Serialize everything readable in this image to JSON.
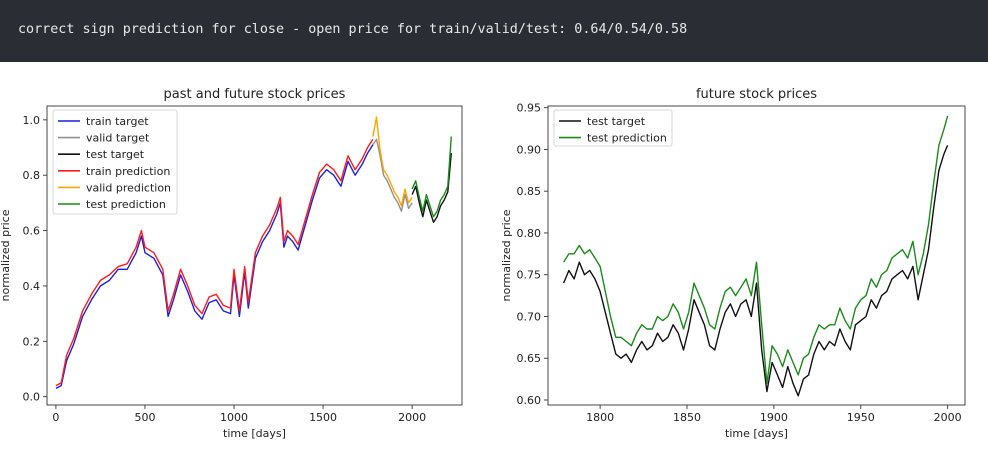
{
  "console": {
    "text": "correct sign prediction for close - open price for train/valid/test: 0.64/0.54/0.58"
  },
  "chart_data": [
    {
      "type": "line",
      "title": "past and future stock prices",
      "xlabel": "time [days]",
      "ylabel": "normalized price",
      "xlim": [
        -50,
        2280
      ],
      "ylim": [
        -0.03,
        1.05
      ],
      "xticks": [
        0,
        500,
        1000,
        1500,
        2000
      ],
      "yticks": [
        0.0,
        0.2,
        0.4,
        0.6,
        0.8,
        1.0
      ],
      "ytick_labels": [
        "0.0",
        "0.2",
        "0.4",
        "0.6",
        "0.8",
        "1.0"
      ],
      "legend_position": "upper-left",
      "grid": false,
      "series": [
        {
          "name": "train target",
          "color": "#1f1fdd",
          "x": [
            0,
            30,
            60,
            100,
            150,
            200,
            250,
            300,
            350,
            400,
            450,
            480,
            500,
            550,
            600,
            630,
            660,
            700,
            740,
            780,
            820,
            860,
            900,
            940,
            980,
            1000,
            1030,
            1060,
            1080,
            1120,
            1160,
            1200,
            1240,
            1260,
            1280,
            1300,
            1330,
            1360,
            1400,
            1440,
            1480,
            1520,
            1560,
            1600,
            1640,
            1680,
            1720,
            1750,
            1780
          ],
          "values": [
            0.03,
            0.04,
            0.13,
            0.19,
            0.29,
            0.35,
            0.4,
            0.42,
            0.46,
            0.46,
            0.52,
            0.58,
            0.52,
            0.5,
            0.44,
            0.29,
            0.35,
            0.44,
            0.38,
            0.31,
            0.28,
            0.34,
            0.35,
            0.31,
            0.3,
            0.44,
            0.29,
            0.45,
            0.32,
            0.5,
            0.56,
            0.6,
            0.66,
            0.7,
            0.54,
            0.58,
            0.56,
            0.53,
            0.62,
            0.71,
            0.79,
            0.82,
            0.8,
            0.76,
            0.85,
            0.8,
            0.84,
            0.88,
            0.91
          ]
        },
        {
          "name": "valid target",
          "color": "#909090",
          "x": [
            1780,
            1800,
            1820,
            1840,
            1860,
            1880,
            1900,
            1920,
            1940,
            1960,
            1980,
            2000
          ],
          "values": [
            0.91,
            0.93,
            0.87,
            0.8,
            0.78,
            0.75,
            0.72,
            0.7,
            0.67,
            0.73,
            0.68,
            0.7
          ]
        },
        {
          "name": "test target",
          "color": "#111111",
          "x": [
            2000,
            2020,
            2040,
            2060,
            2080,
            2100,
            2120,
            2140,
            2160,
            2180,
            2200,
            2220
          ],
          "values": [
            0.73,
            0.76,
            0.7,
            0.65,
            0.71,
            0.67,
            0.63,
            0.65,
            0.69,
            0.71,
            0.74,
            0.88
          ]
        },
        {
          "name": "train prediction",
          "color": "#ff1a1a",
          "x": [
            0,
            30,
            60,
            100,
            150,
            200,
            250,
            300,
            350,
            400,
            450,
            480,
            500,
            550,
            600,
            630,
            660,
            700,
            740,
            780,
            820,
            860,
            900,
            940,
            980,
            1000,
            1030,
            1060,
            1080,
            1120,
            1160,
            1200,
            1240,
            1260,
            1280,
            1300,
            1330,
            1360,
            1400,
            1440,
            1480,
            1520,
            1560,
            1600,
            1640,
            1680,
            1720,
            1750,
            1780
          ],
          "values": [
            0.04,
            0.05,
            0.15,
            0.21,
            0.31,
            0.37,
            0.42,
            0.44,
            0.47,
            0.48,
            0.54,
            0.6,
            0.54,
            0.52,
            0.46,
            0.31,
            0.37,
            0.46,
            0.4,
            0.33,
            0.3,
            0.36,
            0.37,
            0.33,
            0.32,
            0.46,
            0.31,
            0.47,
            0.34,
            0.52,
            0.58,
            0.62,
            0.68,
            0.72,
            0.56,
            0.6,
            0.58,
            0.55,
            0.64,
            0.73,
            0.81,
            0.84,
            0.82,
            0.78,
            0.87,
            0.82,
            0.86,
            0.9,
            0.93
          ]
        },
        {
          "name": "valid prediction",
          "color": "#ffa500",
          "x": [
            1780,
            1800,
            1810,
            1820,
            1840,
            1860,
            1880,
            1900,
            1920,
            1940,
            1960,
            1980,
            2000
          ],
          "values": [
            0.94,
            1.01,
            0.95,
            0.89,
            0.82,
            0.8,
            0.77,
            0.74,
            0.72,
            0.69,
            0.75,
            0.7,
            0.72
          ]
        },
        {
          "name": "test prediction",
          "color": "#1a8a1a",
          "x": [
            2000,
            2020,
            2040,
            2060,
            2080,
            2100,
            2120,
            2140,
            2160,
            2180,
            2200,
            2220
          ],
          "values": [
            0.75,
            0.78,
            0.72,
            0.67,
            0.73,
            0.69,
            0.65,
            0.67,
            0.71,
            0.73,
            0.76,
            0.94
          ]
        }
      ]
    },
    {
      "type": "line",
      "title": "future stock prices",
      "xlabel": "time [days]",
      "ylabel": "normalized price",
      "xlim": [
        1770,
        2010
      ],
      "ylim": [
        0.594,
        0.952
      ],
      "xticks": [
        1800,
        1850,
        1900,
        1950,
        2000
      ],
      "yticks": [
        0.6,
        0.65,
        0.7,
        0.75,
        0.8,
        0.85,
        0.9,
        0.95
      ],
      "ytick_labels": [
        "0.60",
        "0.65",
        "0.70",
        "0.75",
        "0.80",
        "0.85",
        "0.90",
        "0.95"
      ],
      "legend_position": "upper-left",
      "grid": false,
      "series": [
        {
          "name": "test target",
          "color": "#111111",
          "x": [
            1779,
            1782,
            1785,
            1788,
            1791,
            1794,
            1797,
            1800,
            1803,
            1806,
            1809,
            1812,
            1815,
            1818,
            1821,
            1824,
            1827,
            1830,
            1833,
            1836,
            1839,
            1842,
            1845,
            1848,
            1851,
            1854,
            1857,
            1860,
            1863,
            1866,
            1869,
            1872,
            1875,
            1878,
            1881,
            1884,
            1887,
            1890,
            1893,
            1896,
            1899,
            1902,
            1905,
            1908,
            1911,
            1914,
            1917,
            1920,
            1923,
            1926,
            1929,
            1932,
            1935,
            1938,
            1941,
            1944,
            1947,
            1950,
            1953,
            1956,
            1959,
            1962,
            1965,
            1968,
            1971,
            1974,
            1977,
            1980,
            1983,
            1986,
            1989,
            1992,
            1995,
            1998,
            2000
          ],
          "values": [
            0.74,
            0.755,
            0.745,
            0.765,
            0.75,
            0.755,
            0.745,
            0.73,
            0.705,
            0.68,
            0.655,
            0.65,
            0.655,
            0.645,
            0.66,
            0.67,
            0.66,
            0.665,
            0.68,
            0.67,
            0.675,
            0.69,
            0.68,
            0.66,
            0.685,
            0.72,
            0.705,
            0.69,
            0.665,
            0.66,
            0.685,
            0.705,
            0.715,
            0.7,
            0.715,
            0.72,
            0.7,
            0.74,
            0.66,
            0.61,
            0.645,
            0.63,
            0.615,
            0.64,
            0.62,
            0.605,
            0.625,
            0.63,
            0.655,
            0.67,
            0.66,
            0.67,
            0.665,
            0.685,
            0.67,
            0.66,
            0.69,
            0.695,
            0.7,
            0.72,
            0.71,
            0.725,
            0.73,
            0.745,
            0.75,
            0.755,
            0.745,
            0.76,
            0.72,
            0.75,
            0.78,
            0.83,
            0.875,
            0.895,
            0.905
          ]
        },
        {
          "name": "test prediction",
          "color": "#1a8a1a",
          "x": [
            1779,
            1782,
            1785,
            1788,
            1791,
            1794,
            1797,
            1800,
            1803,
            1806,
            1809,
            1812,
            1815,
            1818,
            1821,
            1824,
            1827,
            1830,
            1833,
            1836,
            1839,
            1842,
            1845,
            1848,
            1851,
            1854,
            1857,
            1860,
            1863,
            1866,
            1869,
            1872,
            1875,
            1878,
            1881,
            1884,
            1887,
            1890,
            1893,
            1896,
            1899,
            1902,
            1905,
            1908,
            1911,
            1914,
            1917,
            1920,
            1923,
            1926,
            1929,
            1932,
            1935,
            1938,
            1941,
            1944,
            1947,
            1950,
            1953,
            1956,
            1959,
            1962,
            1965,
            1968,
            1971,
            1974,
            1977,
            1980,
            1983,
            1986,
            1989,
            1992,
            1995,
            1998,
            2000
          ],
          "values": [
            0.765,
            0.775,
            0.775,
            0.785,
            0.775,
            0.78,
            0.77,
            0.76,
            0.73,
            0.7,
            0.675,
            0.675,
            0.67,
            0.665,
            0.68,
            0.69,
            0.685,
            0.685,
            0.7,
            0.695,
            0.7,
            0.715,
            0.705,
            0.685,
            0.705,
            0.74,
            0.725,
            0.71,
            0.69,
            0.685,
            0.71,
            0.73,
            0.735,
            0.725,
            0.735,
            0.745,
            0.725,
            0.765,
            0.69,
            0.62,
            0.665,
            0.655,
            0.64,
            0.66,
            0.645,
            0.63,
            0.65,
            0.655,
            0.675,
            0.69,
            0.685,
            0.69,
            0.69,
            0.71,
            0.695,
            0.685,
            0.71,
            0.72,
            0.725,
            0.745,
            0.735,
            0.75,
            0.755,
            0.77,
            0.775,
            0.78,
            0.77,
            0.79,
            0.75,
            0.775,
            0.81,
            0.86,
            0.905,
            0.925,
            0.94
          ]
        }
      ]
    }
  ]
}
